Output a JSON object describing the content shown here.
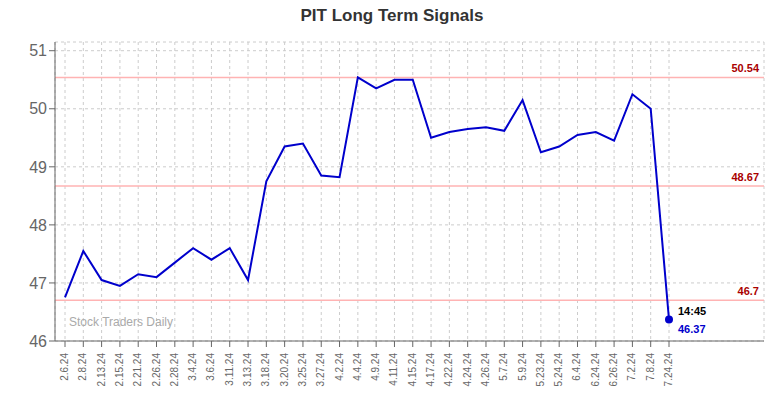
{
  "chart_data": {
    "type": "line",
    "title": "PIT Long Term Signals",
    "color": "#0000cc",
    "grid": true,
    "categories": [
      "2.6.24",
      "2.8.24",
      "2.13.24",
      "2.15.24",
      "2.21.24",
      "2.26.24",
      "2.28.24",
      "3.4.24",
      "3.6.24",
      "3.11.24",
      "3.13.24",
      "3.18.24",
      "3.20.24",
      "3.25.24",
      "3.27.24",
      "4.2.24",
      "4.4.24",
      "4.9.24",
      "4.11.24",
      "4.15.24",
      "4.17.24",
      "4.22.24",
      "4.24.24",
      "4.26.24",
      "5.7.24",
      "5.9.24",
      "5.23.24",
      "5.24.24",
      "6.4.24",
      "6.24.24",
      "6.26.24",
      "7.2.24",
      "7.8.24",
      "7.24.24"
    ],
    "values": [
      46.75,
      47.55,
      47.05,
      46.95,
      47.15,
      47.1,
      47.35,
      47.6,
      47.4,
      47.6,
      47.05,
      48.75,
      49.35,
      49.4,
      48.85,
      48.82,
      50.54,
      50.35,
      50.5,
      50.5,
      49.5,
      49.6,
      49.65,
      49.68,
      49.62,
      50.15,
      49.25,
      49.35,
      49.55,
      49.6,
      49.45,
      50.25,
      50.0,
      46.37
    ],
    "ylim": [
      46.0,
      51.15
    ],
    "yticks": [
      46,
      47,
      48,
      49,
      50,
      51
    ],
    "reference_lines": [
      {
        "value": 50.54,
        "label": "50.54",
        "color": "#ffb3b3",
        "label_color": "#aa0000"
      },
      {
        "value": 48.67,
        "label": "48.67",
        "color": "#ffb3b3",
        "label_color": "#aa0000"
      },
      {
        "value": 46.7,
        "label": "46.7",
        "color": "#ffb3b3",
        "label_color": "#aa0000"
      }
    ],
    "annotations": [
      {
        "text": "14:45",
        "x": "7.24.24",
        "y": 46.37,
        "color": "#000000"
      },
      {
        "text": "46.37",
        "x": "7.24.24",
        "y": 46.37,
        "color": "#0000cc"
      },
      {
        "text": "Stock Traders Daily"
      }
    ]
  }
}
